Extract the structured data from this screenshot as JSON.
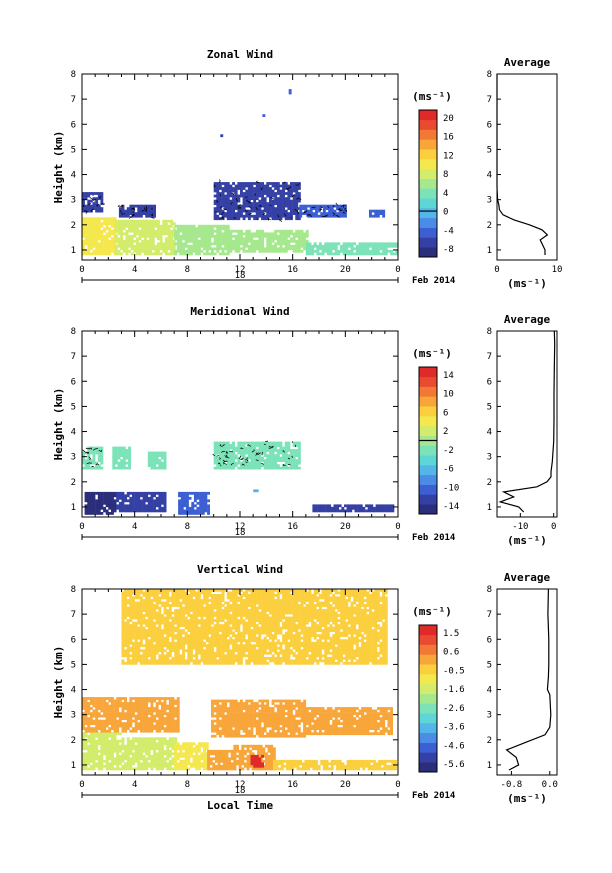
{
  "chart_data": [
    {
      "type": "heatmap",
      "title": "Zonal Wind",
      "ylabel": "Height (km)",
      "unit": "(ms⁻¹)",
      "date_tick": "18",
      "date_label": "Feb 2014",
      "x_ticks": [
        "0",
        "4",
        "8",
        "12",
        "16",
        "20",
        "0"
      ],
      "y_ticks": [
        "1",
        "2",
        "3",
        "4",
        "5",
        "6",
        "7",
        "8"
      ],
      "xlim": [
        0,
        24
      ],
      "ylim": [
        0.6,
        8.0
      ],
      "colorbar": {
        "min": -10,
        "max": 22,
        "ticks": [
          "20",
          "16",
          "12",
          "8",
          "4",
          "0",
          "-4",
          "-8"
        ],
        "contour": 0
      },
      "regions": [
        {
          "x": [
            0,
            2.5
          ],
          "y": [
            0.8,
            2.3
          ],
          "value": 10
        },
        {
          "x": [
            2.5,
            7
          ],
          "y": [
            0.8,
            2.2
          ],
          "value": 9
        },
        {
          "x": [
            7,
            11
          ],
          "y": [
            0.8,
            2.0
          ],
          "value": 6
        },
        {
          "x": [
            11,
            17
          ],
          "y": [
            0.9,
            1.8
          ],
          "value": 5
        },
        {
          "x": [
            17,
            23.8
          ],
          "y": [
            0.8,
            1.3
          ],
          "value": 4
        },
        {
          "x": [
            0,
            1.6
          ],
          "y": [
            2.5,
            3.3
          ],
          "value": -6
        },
        {
          "x": [
            2.8,
            5.5
          ],
          "y": [
            2.3,
            2.8
          ],
          "value": -6
        },
        {
          "x": [
            10,
            16.5
          ],
          "y": [
            2.2,
            3.7
          ],
          "value": -6
        },
        {
          "x": [
            16.5,
            20
          ],
          "y": [
            2.3,
            2.8
          ],
          "value": -4
        },
        {
          "x": [
            21.8,
            22.8
          ],
          "y": [
            2.3,
            2.6
          ],
          "value": -5
        },
        {
          "x": [
            10.5,
            10.7
          ],
          "y": [
            5.5,
            5.6
          ],
          "value": -6
        },
        {
          "x": [
            13.7,
            13.9
          ],
          "y": [
            6.3,
            6.4
          ],
          "value": -4
        },
        {
          "x": [
            15.7,
            15.9
          ],
          "y": [
            7.3,
            7.4
          ],
          "value": -4
        },
        {
          "x": [
            16.1,
            16.3
          ],
          "y": [
            7.9,
            8.0
          ],
          "value": -4
        }
      ],
      "average": {
        "title": "Average",
        "xlabel": "(ms⁻¹)",
        "x_ticks": [
          "0",
          "10"
        ],
        "xlim": [
          0,
          10
        ],
        "heights": [
          0.8,
          1.0,
          1.2,
          1.4,
          1.6,
          1.8,
          2.0,
          2.2,
          2.4,
          2.6,
          2.8,
          3.0,
          3.5,
          8.0
        ],
        "values": [
          8,
          8,
          7.6,
          7.2,
          8.4,
          7.5,
          5.4,
          2.8,
          1.0,
          0.4,
          0.3,
          0.1,
          0.0,
          0.0
        ]
      }
    },
    {
      "type": "heatmap",
      "title": "Meridional Wind",
      "ylabel": "Height (km)",
      "unit": "(ms⁻¹)",
      "date_tick": "18",
      "date_label": "Feb 2014",
      "x_ticks": [
        "0",
        "4",
        "8",
        "12",
        "16",
        "20",
        "0"
      ],
      "y_ticks": [
        "1",
        "2",
        "3",
        "4",
        "5",
        "6",
        "7",
        "8"
      ],
      "xlim": [
        0,
        24
      ],
      "ylim": [
        0.6,
        8.0
      ],
      "colorbar": {
        "min": -16,
        "max": 16,
        "ticks": [
          "14",
          "10",
          "6",
          "2",
          "-2",
          "-6",
          "-10",
          "-14"
        ],
        "contour": 0
      },
      "regions": [
        {
          "x": [
            0.2,
            2.6
          ],
          "y": [
            0.8,
            1.6
          ],
          "value": -14
        },
        {
          "x": [
            2.6,
            6.2
          ],
          "y": [
            0.9,
            1.6
          ],
          "value": -12
        },
        {
          "x": [
            7.3,
            9.6
          ],
          "y": [
            0.8,
            1.6
          ],
          "value": -10
        },
        {
          "x": [
            17.5,
            23.6
          ],
          "y": [
            0.9,
            1.1
          ],
          "value": -12
        },
        {
          "x": [
            0,
            1.6
          ],
          "y": [
            2.6,
            3.4
          ],
          "value": -2
        },
        {
          "x": [
            2.3,
            3.6
          ],
          "y": [
            2.6,
            3.4
          ],
          "value": -2
        },
        {
          "x": [
            5.0,
            6.2
          ],
          "y": [
            2.6,
            3.2
          ],
          "value": -2
        },
        {
          "x": [
            10,
            16.4
          ],
          "y": [
            2.6,
            3.6
          ],
          "value": -2
        },
        {
          "x": [
            13.0,
            13.3
          ],
          "y": [
            1.7,
            1.8
          ],
          "value": -6
        }
      ],
      "average": {
        "title": "Average",
        "xlabel": "(ms⁻¹)",
        "x_ticks": [
          "-10",
          "0"
        ],
        "xlim": [
          -17,
          1
        ],
        "heights": [
          0.8,
          1.0,
          1.2,
          1.4,
          1.6,
          1.8,
          2.0,
          2.2,
          2.4,
          2.8,
          3.2,
          3.6,
          4.5,
          5.5,
          6.5,
          7.5,
          8.0
        ],
        "values": [
          -9,
          -10.5,
          -16,
          -12,
          -15,
          -5,
          -2,
          -0.8,
          -0.8,
          -0.4,
          -0.2,
          0.0,
          0.1,
          0.1,
          0.2,
          0.3,
          0.2
        ]
      }
    },
    {
      "type": "heatmap",
      "title": "Vertical Wind",
      "ylabel": "Height (km)",
      "xlabel": "Local Time",
      "unit": "(ms⁻¹)",
      "date_tick": "18",
      "date_label": "Feb 2014",
      "x_ticks": [
        "0",
        "4",
        "8",
        "12",
        "16",
        "20",
        "0"
      ],
      "y_ticks": [
        "1",
        "2",
        "3",
        "4",
        "5",
        "6",
        "7",
        "8"
      ],
      "xlim": [
        0,
        24
      ],
      "ylim": [
        0.6,
        8.0
      ],
      "colorbar": {
        "min": -6.1,
        "max": 2.0,
        "ticks": [
          "1.5",
          "0.6",
          "-0.5",
          "-1.6",
          "-2.6",
          "-3.6",
          "-4.6",
          "-5.6"
        ],
        "contour": null
      },
      "regions": [
        {
          "x": [
            0,
            3
          ],
          "y": [
            0.8,
            2.3
          ],
          "value": -1.6
        },
        {
          "x": [
            3,
            7
          ],
          "y": [
            0.8,
            2.1
          ],
          "value": -1.3
        },
        {
          "x": [
            7,
            9.5
          ],
          "y": [
            0.8,
            1.9
          ],
          "value": -1.1
        },
        {
          "x": [
            9.5,
            11.5
          ],
          "y": [
            0.8,
            1.6
          ],
          "value": 0.0
        },
        {
          "x": [
            11.5,
            14.5
          ],
          "y": [
            0.8,
            1.8
          ],
          "value": 0.3
        },
        {
          "x": [
            12.8,
            13.7
          ],
          "y": [
            0.9,
            1.4
          ],
          "value": 1.5
        },
        {
          "x": [
            14.5,
            23.8
          ],
          "y": [
            0.8,
            1.2
          ],
          "value": -0.4
        },
        {
          "x": [
            0,
            7.2
          ],
          "y": [
            2.3,
            3.7
          ],
          "value": 0.2
        },
        {
          "x": [
            9.8,
            16.8
          ],
          "y": [
            2.1,
            3.6
          ],
          "value": 0.2
        },
        {
          "x": [
            16.8,
            23.5
          ],
          "y": [
            2.2,
            3.3
          ],
          "value": 0.1
        },
        {
          "x": [
            3,
            23
          ],
          "y": [
            5.0,
            8.0
          ],
          "value": -0.2
        },
        {
          "x": [
            3.2,
            3.5
          ],
          "y": [
            6.6,
            6.8
          ],
          "value": -0.2
        }
      ],
      "average": {
        "title": "Average",
        "xlabel": "(ms⁻¹)",
        "x_ticks": [
          "-0.8",
          "0.0"
        ],
        "xlim": [
          -1.1,
          0.15
        ],
        "heights": [
          0.8,
          1.0,
          1.3,
          1.6,
          1.9,
          2.2,
          2.5,
          3.0,
          3.8,
          4.0,
          4.5,
          5.0,
          6.0,
          7.0,
          8.0
        ],
        "values": [
          -0.85,
          -0.65,
          -0.7,
          -0.9,
          -0.5,
          -0.1,
          0.0,
          0.02,
          0.0,
          -0.05,
          -0.03,
          -0.02,
          -0.02,
          -0.04,
          -0.03
        ]
      }
    }
  ]
}
